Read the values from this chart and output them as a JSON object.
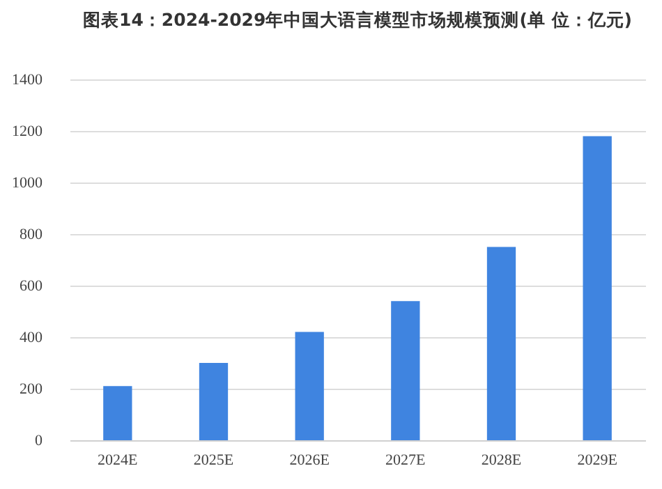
{
  "chart_data": {
    "type": "bar",
    "title": "图表14：2024-2029年中国大语言模型市场规模预测(单 位：亿元)",
    "categories": [
      "2024E",
      "2025E",
      "2026E",
      "2027E",
      "2028E",
      "2029E"
    ],
    "values": [
      210,
      300,
      420,
      540,
      750,
      1180
    ],
    "color": "#3f84e0",
    "ylim": [
      0,
      1400
    ],
    "yticks": [
      0,
      200,
      400,
      600,
      800,
      1000,
      1200,
      1400
    ],
    "grid": "y"
  }
}
